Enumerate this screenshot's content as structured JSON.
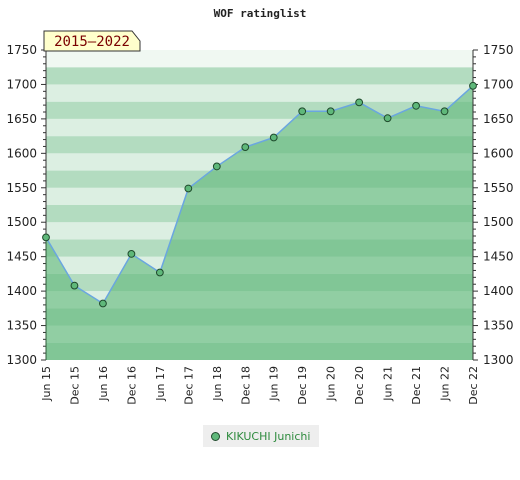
{
  "chart_data": {
    "type": "area",
    "title": "WOF ratinglist",
    "badge": "2015–2022",
    "ylim": [
      1300,
      1750
    ],
    "yticks": [
      1300,
      1350,
      1400,
      1450,
      1500,
      1550,
      1600,
      1650,
      1700,
      1750
    ],
    "categories": [
      "Jun 15",
      "Dec 15",
      "Jun 16",
      "Dec 16",
      "Jun 17",
      "Dec 17",
      "Jun 18",
      "Dec 18",
      "Jun 19",
      "Dec 19",
      "Jun 20",
      "Dec 20",
      "Jun 21",
      "Dec 21",
      "Jun 22",
      "Dec 22"
    ],
    "series": [
      {
        "name": "KIKUCHI Junichi",
        "values": [
          1478,
          1408,
          1382,
          1454,
          1427,
          1549,
          1581,
          1609,
          1623,
          1661,
          1661,
          1674,
          1651,
          1669,
          1661,
          1698
        ]
      }
    ],
    "legend_position": "bottom",
    "colors": {
      "area": "#5fb87a",
      "line": "#6aa6e0",
      "marker_fill": "#5fb87a",
      "marker_stroke": "#1f4a2c",
      "band_dark": "#b3dcc0",
      "band_light": "#dcefe2",
      "band_lightest": "#f0f8f2",
      "badge_fill": "#ffffcc",
      "badge_text": "#7a0000"
    }
  }
}
